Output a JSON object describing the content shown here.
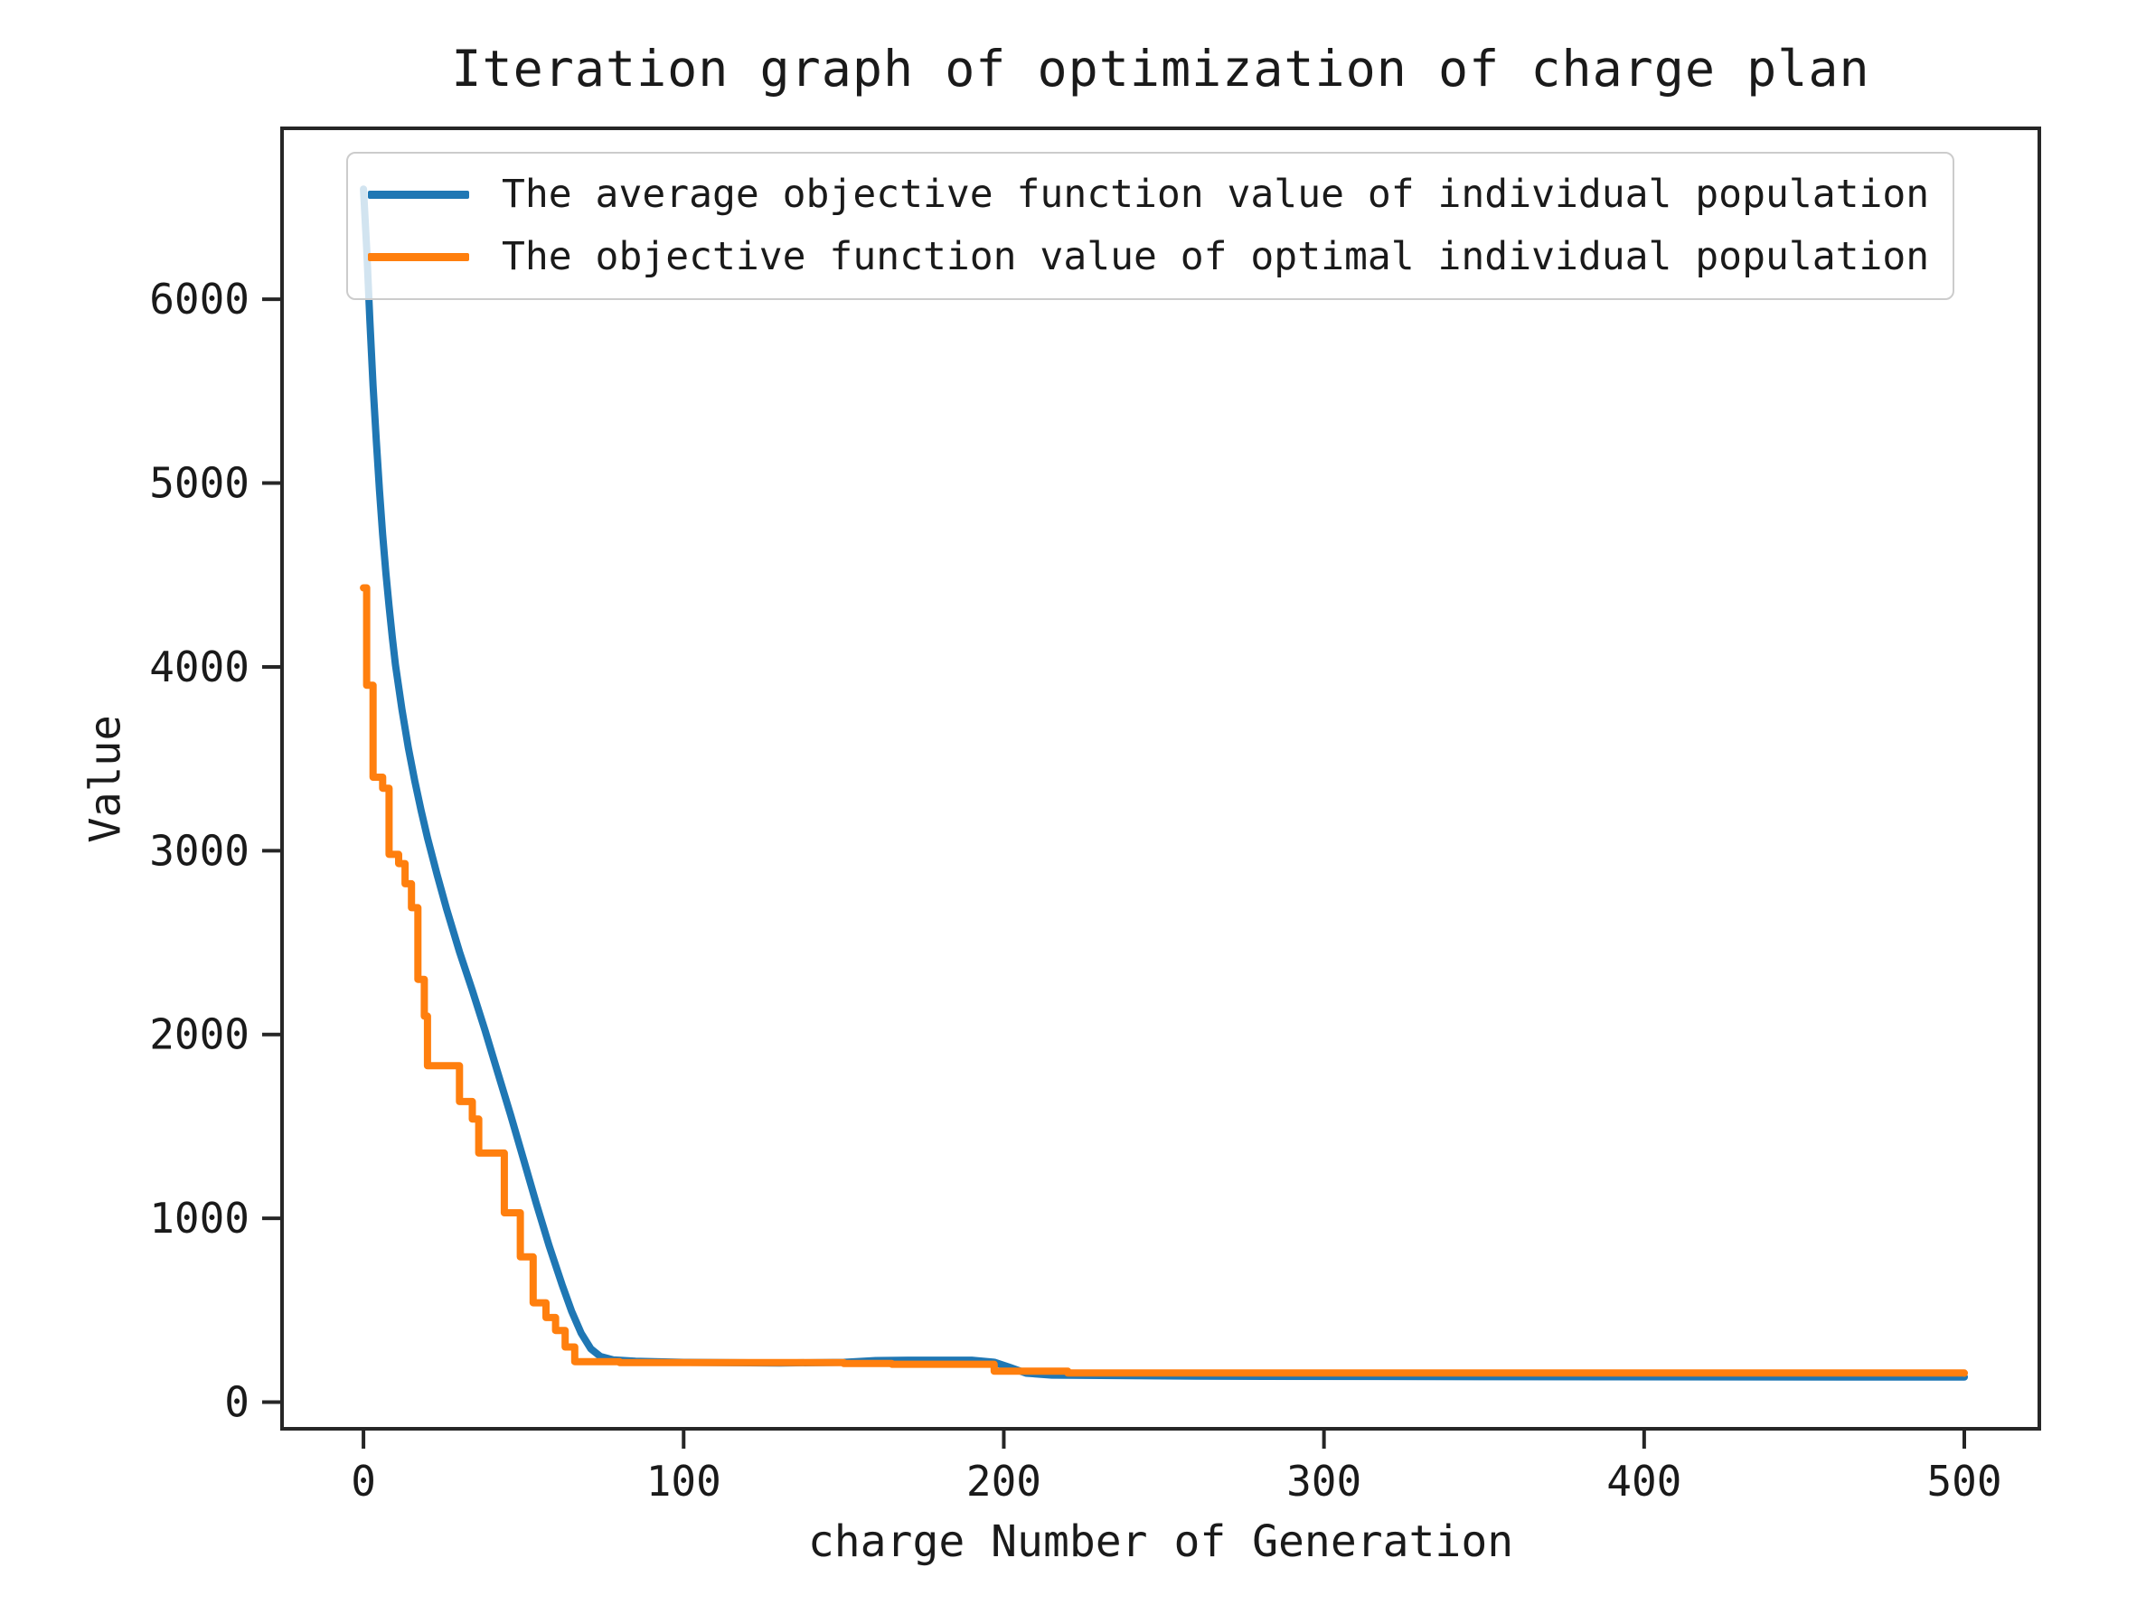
{
  "chart_data": {
    "type": "line",
    "title": "Iteration graph of optimization of charge plan",
    "xlabel": "charge Number of Generation",
    "ylabel": "Value",
    "xlim": [
      -26,
      524
    ],
    "ylim": [
      -155,
      6940
    ],
    "x_ticks": [
      0,
      100,
      200,
      300,
      400,
      500
    ],
    "y_ticks": [
      0,
      1000,
      2000,
      3000,
      4000,
      5000,
      6000
    ],
    "grid": false,
    "legend_position": "upper left",
    "axis_color": "#262626",
    "series": [
      {
        "name": "The average objective function value of individual population",
        "color": "#1f77b4",
        "style": "line",
        "points": [
          [
            0,
            6600
          ],
          [
            1,
            6280
          ],
          [
            2,
            5880
          ],
          [
            3,
            5530
          ],
          [
            4,
            5230
          ],
          [
            5,
            4960
          ],
          [
            6,
            4720
          ],
          [
            7,
            4510
          ],
          [
            8,
            4330
          ],
          [
            9,
            4160
          ],
          [
            10,
            4010
          ],
          [
            12,
            3770
          ],
          [
            14,
            3560
          ],
          [
            16,
            3380
          ],
          [
            18,
            3220
          ],
          [
            20,
            3070
          ],
          [
            23,
            2870
          ],
          [
            26,
            2680
          ],
          [
            30,
            2450
          ],
          [
            34,
            2240
          ],
          [
            38,
            2020
          ],
          [
            42,
            1790
          ],
          [
            46,
            1560
          ],
          [
            50,
            1320
          ],
          [
            54,
            1080
          ],
          [
            58,
            850
          ],
          [
            62,
            640
          ],
          [
            65,
            495
          ],
          [
            68,
            375
          ],
          [
            71,
            290
          ],
          [
            74,
            248
          ],
          [
            78,
            230
          ],
          [
            85,
            222
          ],
          [
            100,
            216
          ],
          [
            130,
            213
          ],
          [
            150,
            216
          ],
          [
            160,
            226
          ],
          [
            170,
            228
          ],
          [
            190,
            228
          ],
          [
            197,
            217
          ],
          [
            202,
            188
          ],
          [
            207,
            157
          ],
          [
            215,
            147
          ],
          [
            260,
            141
          ],
          [
            350,
            138
          ],
          [
            500,
            136
          ]
        ]
      },
      {
        "name": "The objective function value of optimal individual population",
        "color": "#ff7f0e",
        "style": "step",
        "points": [
          [
            0,
            4430
          ],
          [
            1,
            3900
          ],
          [
            3,
            3400
          ],
          [
            6,
            3340
          ],
          [
            8,
            2980
          ],
          [
            11,
            2930
          ],
          [
            13,
            2820
          ],
          [
            15,
            2690
          ],
          [
            17,
            2300
          ],
          [
            19,
            2100
          ],
          [
            20,
            1830
          ],
          [
            30,
            1635
          ],
          [
            34,
            1540
          ],
          [
            36,
            1355
          ],
          [
            44,
            1030
          ],
          [
            49,
            790
          ],
          [
            53,
            540
          ],
          [
            57,
            460
          ],
          [
            60,
            390
          ],
          [
            63,
            300
          ],
          [
            66,
            220
          ],
          [
            80,
            215
          ],
          [
            150,
            210
          ],
          [
            165,
            206
          ],
          [
            197,
            168
          ],
          [
            220,
            158
          ],
          [
            500,
            157
          ]
        ]
      }
    ]
  }
}
